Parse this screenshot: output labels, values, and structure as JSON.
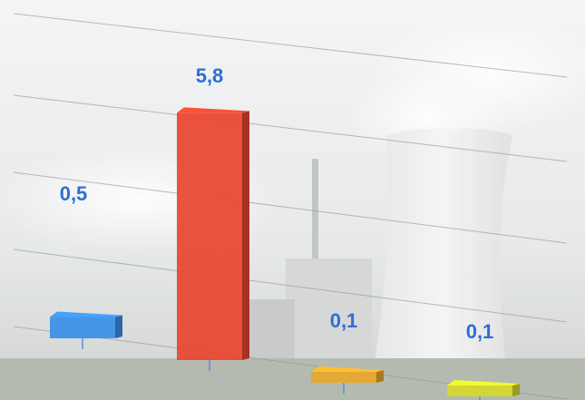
{
  "chart_data": {
    "type": "bar",
    "values": [
      0.5,
      5.8,
      0.1,
      0.1
    ],
    "value_labels": [
      "0,5",
      "5,8",
      "0,1",
      "0,1"
    ],
    "colors": [
      "#3a8fe6",
      "#e8452e",
      "#e8a72a",
      "#d4d92a"
    ],
    "ylim": [
      0,
      6
    ]
  }
}
